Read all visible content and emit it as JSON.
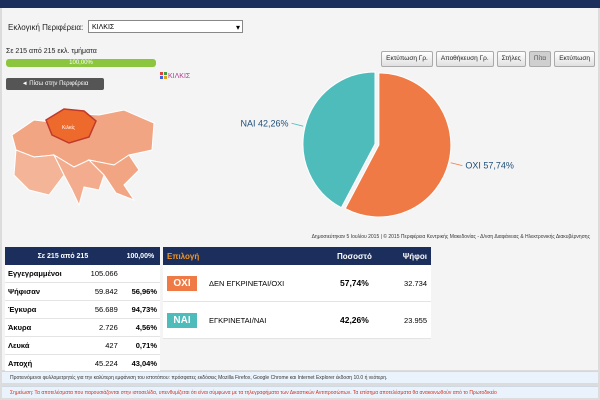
{
  "header": {
    "region_label": "Εκλογική Περιφέρεια:",
    "region_selected": "ΚΙΛΚΙΣ"
  },
  "progress": {
    "text": "Σε 215 από 215 εκλ. τμήματα",
    "percent_label": "100,00%"
  },
  "toolbar": [
    "Εκτύπωση Γρ.",
    "Αποθήκευση Γρ.",
    "Στήλες",
    "Πίτα",
    "Εκτύπωση"
  ],
  "back_button": "◄ Πίσω στην Περιφέρεια",
  "map_label": "Κιλκίς",
  "chart_data": {
    "type": "pie",
    "title": "ΚΙΛΚΙΣ",
    "categories": [
      "ΟΧΙ",
      "ΝΑΙ"
    ],
    "values": [
      57.74,
      42.26
    ],
    "value_labels": [
      "57,74%",
      "42,26%"
    ],
    "colors": [
      "#f07a45",
      "#4fbcbc"
    ],
    "label_colors": [
      "#1f4e79",
      "#1f4e79"
    ]
  },
  "credits": "Δημοσιεύτηκαν 5 Ιουλίου 2015 | © 2015 Περιφέρεια Κεντρικής Μακεδονίας - Δ/νση Διαφάνειας & Ηλεκτρονικής Διακυβέρνησης",
  "stats": {
    "header": [
      "Σε 215 από 215",
      "100,00%"
    ],
    "rows": [
      [
        "Εγγεγραμμένοι",
        "105.066"
      ],
      [
        "Ψήφισαν",
        "59.842",
        "56,96%"
      ],
      [
        "Έγκυρα",
        "56.689",
        "94,73%"
      ],
      [
        "Άκυρα",
        "2.726",
        "4,56%"
      ],
      [
        "Λευκά",
        "427",
        "0,71%"
      ],
      [
        "Αποχή",
        "45.224",
        "43,04%"
      ]
    ]
  },
  "results": {
    "headers": [
      "Επιλογή",
      "Ποσοστό",
      "Ψήφοι"
    ],
    "rows": [
      {
        "badge": "ΟΧΙ",
        "label": "ΔΕΝ ΕΓΚΡΙΝΕΤΑΙ/ΟΧΙ",
        "percent": "57,74%",
        "votes": "32.734"
      },
      {
        "badge": "ΝΑΙ",
        "label": "ΕΓΚΡΙΝΕΤΑΙ/ΝΑΙ",
        "percent": "42,26%",
        "votes": "23.955"
      }
    ]
  },
  "notices": [
    "Προτεινόμενοι φυλλομετρητές για την καλύτερη εμφάνιση του ιστοτόπου: πρόσφατες εκδόσεις Mozilla Firefox, Google Chrome και Internet Explorer έκδοση 10.0 ή νεότερη.",
    "Σημείωση: Τα αποτελέσματα που παρουσιάζονται στην ιστοσελίδα, υπενθυμίζεται ότι είναι σύμφωνα με τα τηλεγραφήματα των Δικαστικών Αντιπροσώπων. Τα επίσημα αποτελέσματα θα ανακοινωθούν από το Πρωτοδικείο"
  ]
}
